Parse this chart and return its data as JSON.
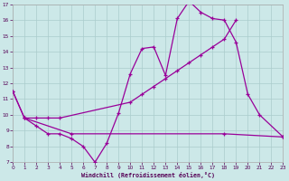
{
  "xlabel": "Windchill (Refroidissement éolien,°C)",
  "bg_color": "#cce8e8",
  "grid_color": "#aacccc",
  "line_color": "#990099",
  "tick_color": "#550055",
  "xlim": [
    0,
    23
  ],
  "ylim": [
    7,
    17
  ],
  "yticks": [
    7,
    8,
    9,
    10,
    11,
    12,
    13,
    14,
    15,
    16,
    17
  ],
  "xticks": [
    0,
    1,
    2,
    3,
    4,
    5,
    6,
    7,
    8,
    9,
    10,
    11,
    12,
    13,
    14,
    15,
    16,
    17,
    18,
    19,
    20,
    21,
    22,
    23
  ],
  "line1_x": [
    0,
    1,
    2,
    3,
    4,
    5,
    6,
    7,
    8,
    9,
    10,
    11,
    12,
    13,
    14,
    15,
    16,
    17,
    18,
    19,
    20,
    21,
    23
  ],
  "line1_y": [
    11.5,
    9.8,
    9.3,
    8.8,
    8.8,
    8.5,
    8.0,
    7.0,
    8.2,
    10.1,
    12.6,
    14.2,
    14.3,
    12.5,
    16.1,
    17.2,
    16.5,
    16.1,
    16.0,
    14.6,
    11.3,
    10.0,
    8.6
  ],
  "line2_x": [
    0,
    1,
    2,
    3,
    4,
    10,
    11,
    12,
    13,
    14,
    15,
    16,
    17,
    18,
    19
  ],
  "line2_y": [
    11.5,
    9.8,
    9.8,
    9.8,
    9.8,
    10.8,
    11.3,
    11.8,
    12.3,
    12.8,
    13.3,
    13.8,
    14.3,
    14.8,
    16.0
  ],
  "line3_x": [
    1,
    5,
    18,
    23
  ],
  "line3_y": [
    9.8,
    8.8,
    8.8,
    8.6
  ],
  "linewidth": 0.9,
  "markersize": 2.5
}
